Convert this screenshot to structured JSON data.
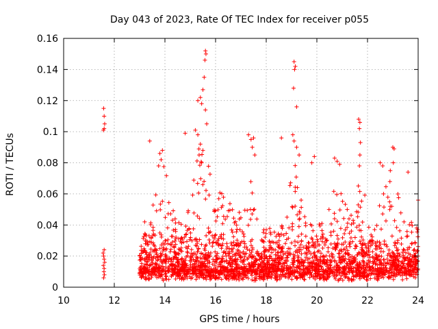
{
  "chart_data": {
    "type": "scatter",
    "title": "Day 043 of 2023, Rate Of TEC Index for receiver p055",
    "xlabel": "GPS time / hours",
    "ylabel": "ROTI / TECUs",
    "xlim": [
      10,
      24
    ],
    "ylim": [
      0,
      0.16
    ],
    "grid": true,
    "marker": "+",
    "color": "#ff0000",
    "x_ticks": [
      "10",
      "12",
      "14",
      "16",
      "18",
      "20",
      "22",
      "24"
    ],
    "x_tick_values": [
      10,
      12,
      14,
      16,
      18,
      20,
      22,
      24
    ],
    "y_ticks": [
      "0",
      "0.02",
      "0.04",
      "0.06",
      "0.08",
      "0.1",
      "0.12",
      "0.14",
      "0.16"
    ],
    "y_tick_values": [
      0,
      0.02,
      0.04,
      0.06,
      0.08,
      0.1,
      0.12,
      0.14,
      0.16
    ],
    "series": [
      {
        "name": "ROTI p055",
        "points": [
          [
            11.58,
            0.115
          ],
          [
            11.6,
            0.11
          ],
          [
            11.62,
            0.105
          ],
          [
            11.6,
            0.102
          ],
          [
            11.57,
            0.101
          ],
          [
            11.56,
            0.022
          ],
          [
            11.58,
            0.02
          ],
          [
            11.6,
            0.018
          ],
          [
            11.62,
            0.016
          ],
          [
            11.57,
            0.014
          ],
          [
            11.6,
            0.012
          ],
          [
            11.59,
            0.01
          ],
          [
            11.61,
            0.008
          ],
          [
            11.58,
            0.006
          ],
          [
            11.6,
            0.024
          ],
          [
            13.4,
            0.094
          ],
          [
            13.2,
            0.042
          ],
          [
            14.8,
            0.099
          ],
          [
            15.4,
            0.122
          ],
          [
            15.5,
            0.127
          ],
          [
            15.55,
            0.135
          ],
          [
            15.58,
            0.146
          ],
          [
            15.6,
            0.152
          ],
          [
            15.62,
            0.15
          ],
          [
            15.45,
            0.118
          ],
          [
            15.3,
            0.12
          ],
          [
            15.2,
            0.101
          ],
          [
            15.3,
            0.098
          ],
          [
            15.4,
            0.092
          ],
          [
            15.5,
            0.088
          ],
          [
            15.35,
            0.085
          ],
          [
            15.45,
            0.08
          ],
          [
            15.6,
            0.114
          ],
          [
            15.65,
            0.105
          ],
          [
            13.8,
            0.086
          ],
          [
            13.9,
            0.088
          ],
          [
            13.85,
            0.082
          ],
          [
            13.75,
            0.078
          ],
          [
            17.3,
            0.098
          ],
          [
            17.4,
            0.095
          ],
          [
            17.5,
            0.096
          ],
          [
            17.45,
            0.09
          ],
          [
            17.55,
            0.085
          ],
          [
            18.6,
            0.096
          ],
          [
            19.1,
            0.145
          ],
          [
            19.15,
            0.142
          ],
          [
            19.12,
            0.14
          ],
          [
            19.08,
            0.128
          ],
          [
            19.2,
            0.116
          ],
          [
            19.05,
            0.098
          ],
          [
            19.1,
            0.094
          ],
          [
            19.2,
            0.09
          ],
          [
            19.3,
            0.085
          ],
          [
            19.8,
            0.08
          ],
          [
            19.9,
            0.084
          ],
          [
            20.7,
            0.083
          ],
          [
            20.8,
            0.081
          ],
          [
            20.9,
            0.079
          ],
          [
            21.65,
            0.108
          ],
          [
            21.7,
            0.106
          ],
          [
            21.68,
            0.102
          ],
          [
            21.72,
            0.093
          ],
          [
            21.7,
            0.085
          ],
          [
            21.68,
            0.078
          ],
          [
            22.5,
            0.08
          ],
          [
            22.6,
            0.078
          ],
          [
            23.0,
            0.09
          ],
          [
            23.05,
            0.089
          ],
          [
            23.02,
            0.08
          ],
          [
            22.9,
            0.075
          ],
          [
            23.6,
            0.074
          ],
          [
            24.0,
            0.056
          ]
        ]
      }
    ]
  }
}
